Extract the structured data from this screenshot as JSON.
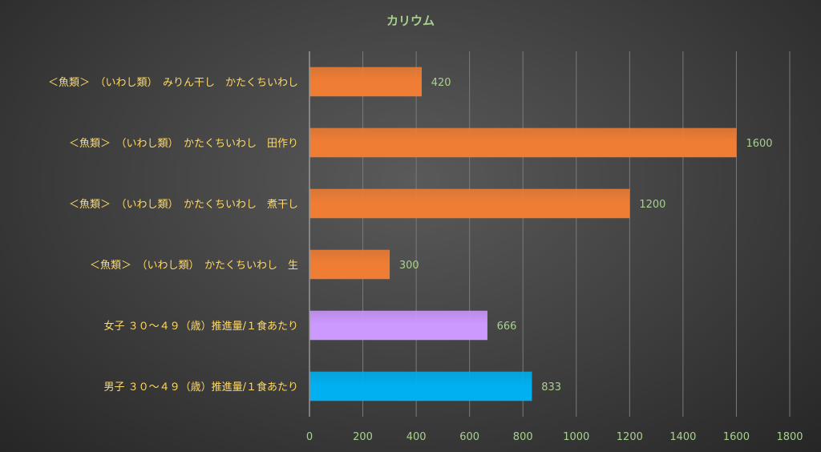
{
  "chart_data": {
    "type": "bar",
    "orientation": "horizontal",
    "title": "カリウム",
    "categories": [
      "＜魚類＞　（いわし類）　みりん干し　かたくちいわし",
      "＜魚類＞　（いわし類）　かたくちいわし　田作り",
      "＜魚類＞　（いわし類）　かたくちいわし　煮干し",
      "＜魚類＞　（いわし類）　かたくちいわし　生",
      "女子 ３０～４９（歳）推進量/１食あたり",
      "男子 ３０～４９（歳）推進量/１食あたり"
    ],
    "values": [
      420,
      1600,
      1200,
      300,
      666,
      833
    ],
    "bar_colors": [
      "#ef7d34",
      "#ef7d34",
      "#ef7d34",
      "#ef7d34",
      "#cc99ff",
      "#00b0f0"
    ],
    "xlim": [
      0,
      1800
    ],
    "xticks": [
      0,
      200,
      400,
      600,
      800,
      1000,
      1200,
      1400,
      1600,
      1800
    ],
    "grid": true,
    "legend": "none",
    "colors": {
      "title": "#a9d18e",
      "category_label": "#ffd966",
      "tick_label": "#a9d18e",
      "data_label": "#a9d18e",
      "grid": "#7a7a7a",
      "axis": "#bfbfbf"
    }
  }
}
